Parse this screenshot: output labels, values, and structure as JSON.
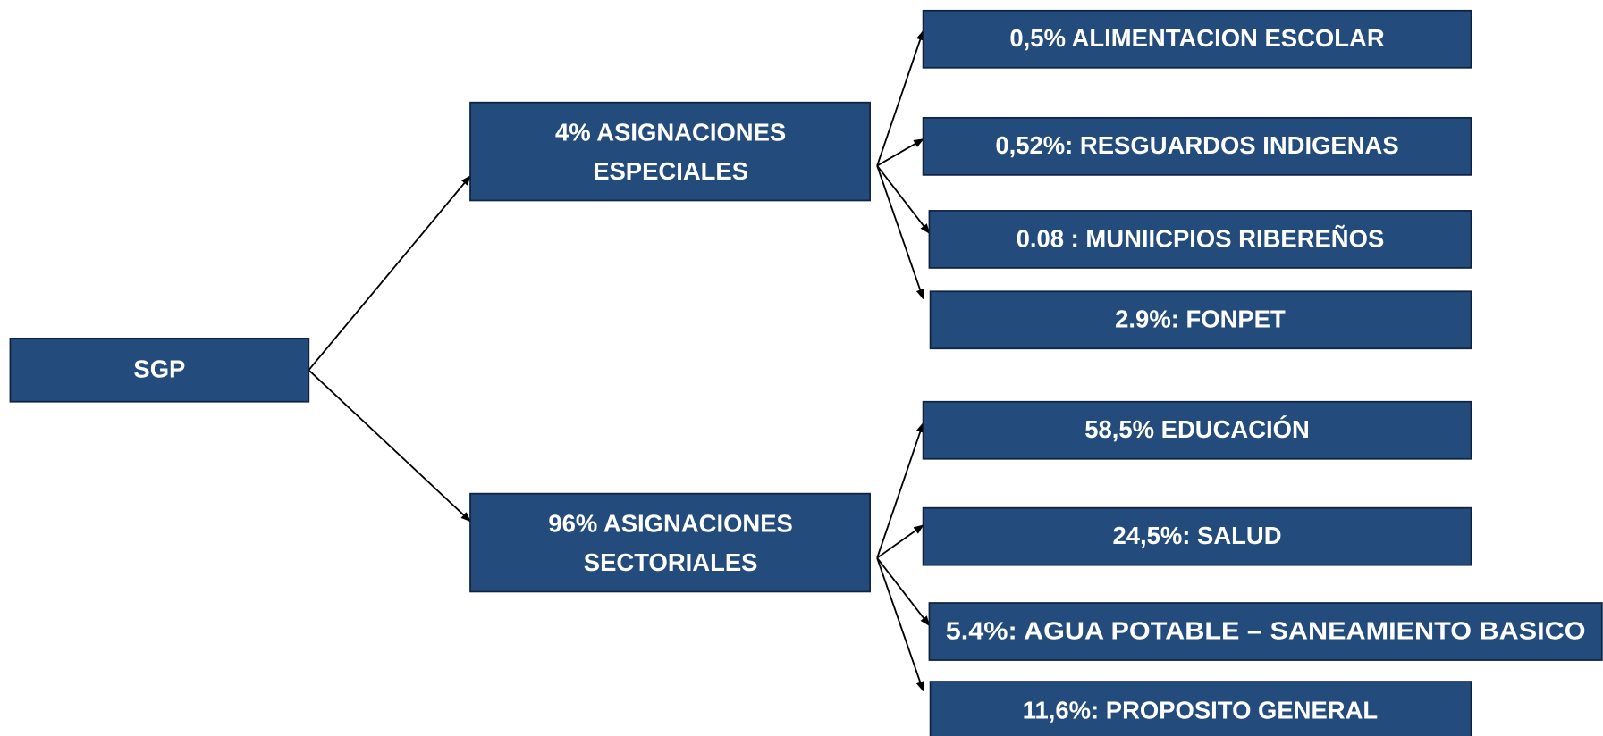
{
  "root": {
    "label": "SGP"
  },
  "branches": [
    {
      "label_lines": [
        "4% ASIGNACIONES",
        "ESPECIALES"
      ],
      "children": [
        "0,5% ALIMENTACION ESCOLAR",
        "0,52%: RESGUARDOS INDIGENAS",
        "0.08 : MUNIICPIOS RIBEREÑOS",
        "2.9%: FONPET"
      ]
    },
    {
      "label_lines": [
        "96% ASIGNACIONES",
        "SECTORIALES"
      ],
      "children": [
        "58,5% EDUCACIÓN",
        "24,5%: SALUD",
        "5.4%: AGUA POTABLE – SANEAMIENTO BASICO",
        "11,6%: PROPOSITO GENERAL"
      ]
    }
  ]
}
